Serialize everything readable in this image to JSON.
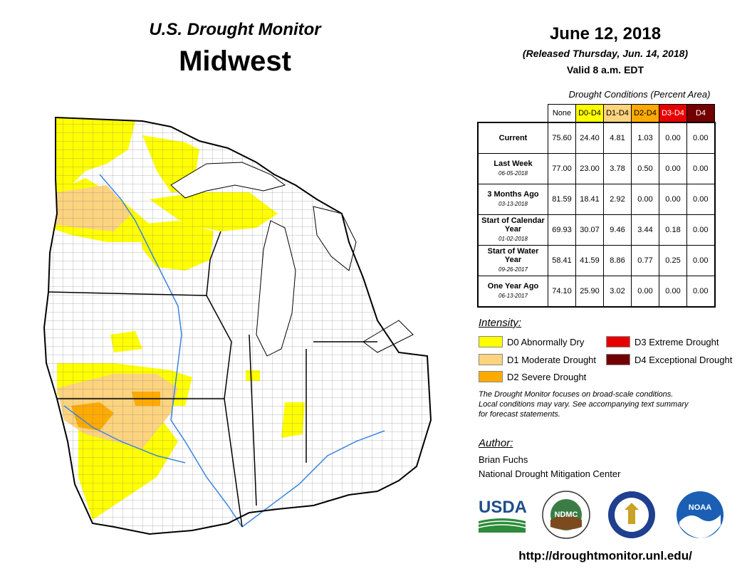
{
  "header": {
    "subtitle": "U.S. Drought Monitor",
    "region": "Midwest",
    "date": "June 12, 2018",
    "released": "(Released Thursday, Jun. 14, 2018)",
    "valid": "Valid 8 a.m. EDT"
  },
  "table": {
    "title": "Drought Conditions (Percent Area)",
    "columns": [
      "None",
      "D0-D4",
      "D1-D4",
      "D2-D4",
      "D3-D4",
      "D4"
    ],
    "column_colors": [
      "#ffffff",
      "#ffff00",
      "#fcd37f",
      "#ffaa00",
      "#e60000",
      "#730000"
    ],
    "rows": [
      {
        "label": "Current",
        "date": "",
        "values": [
          "75.60",
          "24.40",
          "4.81",
          "1.03",
          "0.00",
          "0.00"
        ]
      },
      {
        "label": "Last Week",
        "date": "06-05-2018",
        "values": [
          "77.00",
          "23.00",
          "3.78",
          "0.50",
          "0.00",
          "0.00"
        ]
      },
      {
        "label": "3 Months Ago",
        "date": "03-13-2018",
        "values": [
          "81.59",
          "18.41",
          "2.92",
          "0.00",
          "0.00",
          "0.00"
        ]
      },
      {
        "label": "Start of Calendar Year",
        "date": "01-02-2018",
        "values": [
          "69.93",
          "30.07",
          "9.46",
          "3.44",
          "0.18",
          "0.00"
        ]
      },
      {
        "label": "Start of Water Year",
        "date": "09-26-2017",
        "values": [
          "58.41",
          "41.59",
          "8.86",
          "0.77",
          "0.25",
          "0.00"
        ]
      },
      {
        "label": "One Year Ago",
        "date": "06-13-2017",
        "values": [
          "74.10",
          "25.90",
          "3.02",
          "0.00",
          "0.00",
          "0.00"
        ]
      }
    ]
  },
  "legend": {
    "title": "Intensity:",
    "items": [
      {
        "label": "D0 Abnormally Dry",
        "color": "#ffff00"
      },
      {
        "label": "D1 Moderate Drought",
        "color": "#fcd37f"
      },
      {
        "label": "D2 Severe Drought",
        "color": "#ffaa00"
      },
      {
        "label": "D3 Extreme Drought",
        "color": "#e60000"
      },
      {
        "label": "D4 Exceptional Drought",
        "color": "#730000"
      }
    ]
  },
  "note": {
    "line1": "The Drought Monitor focuses on broad-scale conditions.",
    "line2": "Local conditions may vary. See accompanying text summary",
    "line3": "for forecast statements."
  },
  "author": {
    "title": "Author:",
    "name": "Brian Fuchs",
    "org": "National Drought Mitigation Center"
  },
  "logos": {
    "usda": "USDA",
    "ndmc": "NDMC",
    "noaa": "NOAA"
  },
  "url": "http://droughtmonitor.unl.edu/"
}
